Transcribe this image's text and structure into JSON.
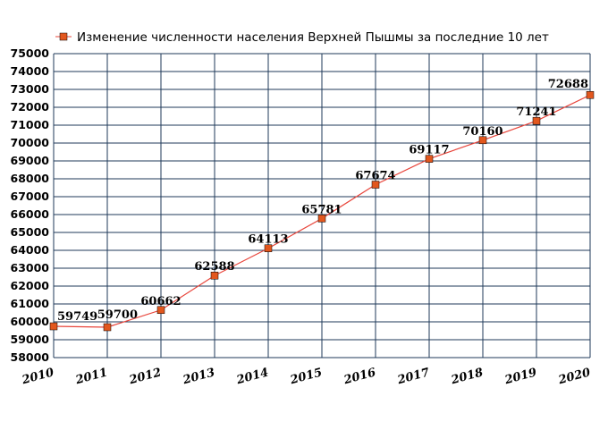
{
  "chart_data": {
    "type": "line",
    "x": [
      "2010",
      "2011",
      "2012",
      "2013",
      "2014",
      "2015",
      "2016",
      "2017",
      "2018",
      "2019",
      "2020"
    ],
    "series": [
      {
        "name": "Изменение численности населения Верхней Пышмы за последние 10 лет",
        "values": [
          59749,
          59700,
          60662,
          62588,
          64113,
          65781,
          67674,
          69117,
          70160,
          71241,
          72688
        ],
        "color": "#e8443a",
        "marker_color": "#e2571e"
      }
    ],
    "data_labels": [
      "59749",
      "59700",
      "60662",
      "62588",
      "64113",
      "65781",
      "67674",
      "69117",
      "70160",
      "71241",
      "72688"
    ],
    "ylim": [
      58000,
      75000
    ],
    "y_ticks": [
      "58000",
      "59000",
      "60000",
      "61000",
      "62000",
      "63000",
      "64000",
      "65000",
      "66000",
      "67000",
      "68000",
      "69000",
      "70000",
      "71000",
      "72000",
      "73000",
      "74000",
      "75000"
    ],
    "grid": true,
    "grid_color": "#1f3a5a",
    "legend_position": "top"
  }
}
